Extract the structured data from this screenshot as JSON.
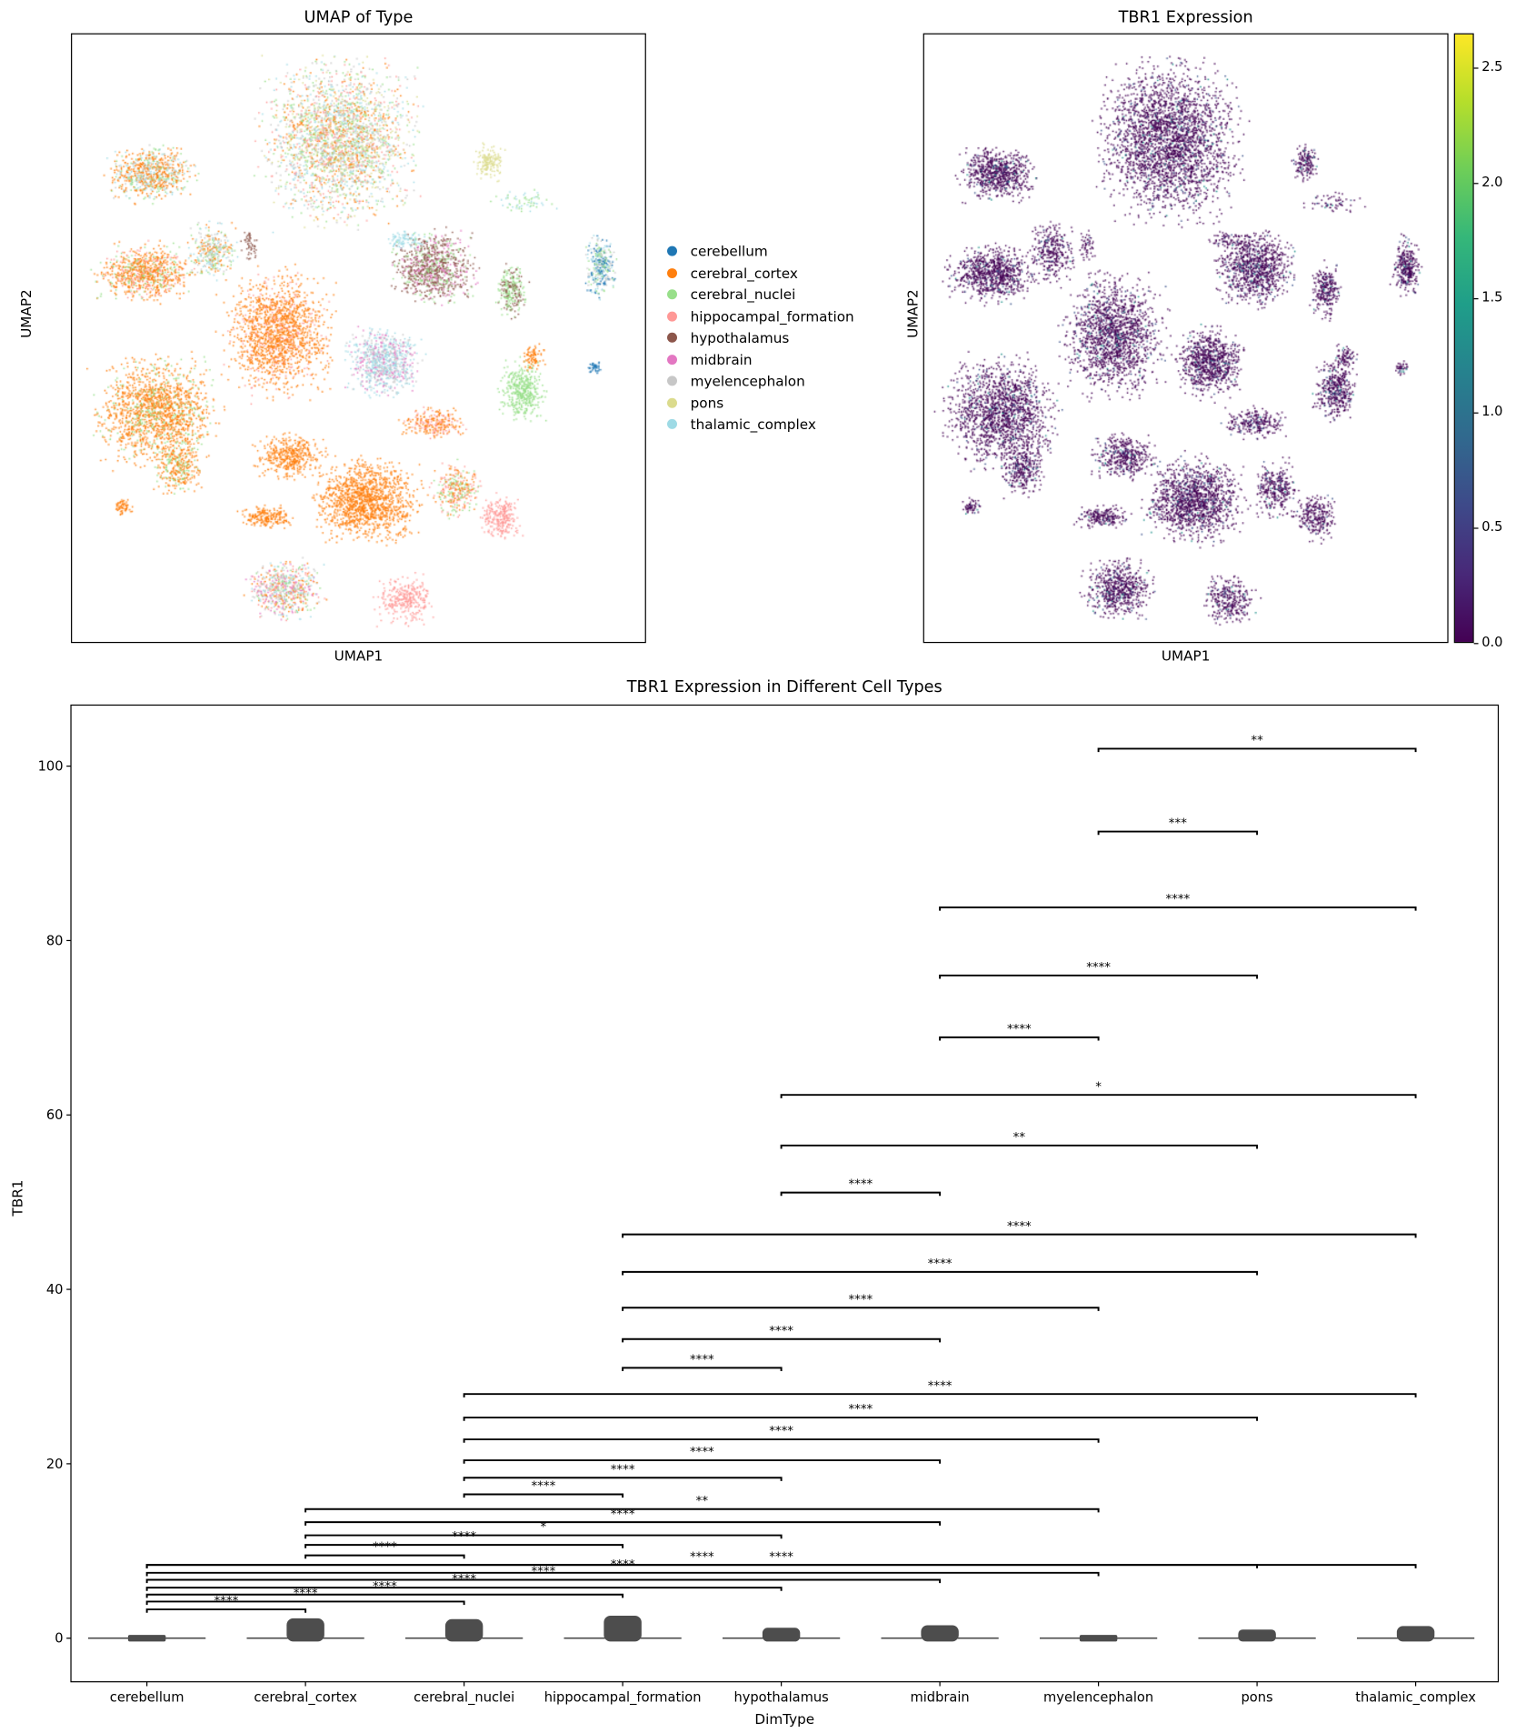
{
  "umap_type": {
    "title": "UMAP of Type",
    "xlabel": "UMAP1",
    "ylabel": "UMAP2",
    "legend": [
      {
        "label": "cerebellum",
        "color": "#1f77b4"
      },
      {
        "label": "cerebral_cortex",
        "color": "#ff7f0e"
      },
      {
        "label": "cerebral_nuclei",
        "color": "#98df8a"
      },
      {
        "label": "hippocampal_formation",
        "color": "#ff9896"
      },
      {
        "label": "hypothalamus",
        "color": "#8c564b"
      },
      {
        "label": "midbrain",
        "color": "#e377c2"
      },
      {
        "label": "myelencephalon",
        "color": "#c7c7c7"
      },
      {
        "label": "pons",
        "color": "#dbdb8d"
      },
      {
        "label": "thalamic_complex",
        "color": "#9edae5"
      }
    ]
  },
  "umap_expr": {
    "title": "TBR1 Expression",
    "xlabel": "UMAP1",
    "ylabel": "UMAP2",
    "colormap": "viridis",
    "colorbar_range": [
      0,
      2.65
    ],
    "colorbar_ticks": [
      "0.0",
      "0.5",
      "1.0",
      "1.5",
      "2.0",
      "2.5"
    ]
  },
  "chart_data": {
    "type": "violin",
    "title": "TBR1 Expression in Different Cell Types",
    "xlabel": "DimType",
    "ylabel": "TBR1",
    "ylim": [
      -5,
      107
    ],
    "yticks": [
      "0",
      "20",
      "40",
      "60",
      "80",
      "100"
    ],
    "categories": [
      "cerebellum",
      "cerebral_cortex",
      "cerebral_nuclei",
      "hippocampal_formation",
      "hypothalamus",
      "midbrain",
      "myelencephalon",
      "pons",
      "thalamic_complex"
    ],
    "max_values": [
      0.1,
      2.3,
      2.2,
      2.6,
      1.2,
      1.5,
      0.1,
      1.0,
      1.4
    ],
    "violin_color": "#4d4d4d",
    "comparisons": [
      {
        "a": 0,
        "b": 1,
        "y": 3.3,
        "label": "****"
      },
      {
        "a": 0,
        "b": 2,
        "y": 4.2,
        "label": "****"
      },
      {
        "a": 0,
        "b": 3,
        "y": 5.0,
        "label": "****"
      },
      {
        "a": 0,
        "b": 4,
        "y": 5.8,
        "label": "****"
      },
      {
        "a": 0,
        "b": 5,
        "y": 6.7,
        "label": "****"
      },
      {
        "a": 0,
        "b": 6,
        "y": 7.5,
        "label": "****"
      },
      {
        "a": 0,
        "b": 7,
        "y": 8.4,
        "label": "****"
      },
      {
        "a": 1,
        "b": 2,
        "y": 9.5,
        "label": "****"
      },
      {
        "a": 1,
        "b": 3,
        "y": 10.7,
        "label": "****"
      },
      {
        "a": 1,
        "b": 4,
        "y": 11.8,
        "label": "*"
      },
      {
        "a": 1,
        "b": 5,
        "y": 13.3,
        "label": "****"
      },
      {
        "a": 1,
        "b": 6,
        "y": 14.8,
        "label": "**"
      },
      {
        "a": 2,
        "b": 3,
        "y": 16.5,
        "label": "****"
      },
      {
        "a": 2,
        "b": 4,
        "y": 18.4,
        "label": "****"
      },
      {
        "a": 2,
        "b": 5,
        "y": 20.4,
        "label": "****"
      },
      {
        "a": 2,
        "b": 6,
        "y": 22.8,
        "label": "****"
      },
      {
        "a": 2,
        "b": 7,
        "y": 25.3,
        "label": "****"
      },
      {
        "a": 2,
        "b": 8,
        "y": 28.0,
        "label": "****"
      },
      {
        "a": 3,
        "b": 4,
        "y": 31.0,
        "label": "****"
      },
      {
        "a": 3,
        "b": 5,
        "y": 34.3,
        "label": "****"
      },
      {
        "a": 3,
        "b": 6,
        "y": 37.9,
        "label": "****"
      },
      {
        "a": 3,
        "b": 7,
        "y": 42.0,
        "label": "****"
      },
      {
        "a": 3,
        "b": 8,
        "y": 46.3,
        "label": "****"
      },
      {
        "a": 4,
        "b": 5,
        "y": 51.1,
        "label": "****"
      },
      {
        "a": 4,
        "b": 7,
        "y": 56.5,
        "label": "**"
      },
      {
        "a": 4,
        "b": 8,
        "y": 62.3,
        "label": "*"
      },
      {
        "a": 5,
        "b": 6,
        "y": 68.9,
        "label": "****"
      },
      {
        "a": 5,
        "b": 7,
        "y": 76.0,
        "label": "****"
      },
      {
        "a": 5,
        "b": 8,
        "y": 83.8,
        "label": "****"
      },
      {
        "a": 6,
        "b": 7,
        "y": 92.5,
        "label": "***"
      },
      {
        "a": 6,
        "b": 8,
        "y": 102.0,
        "label": "**"
      },
      {
        "a": 0,
        "b": 8,
        "y": 8.4,
        "label": "****"
      }
    ]
  }
}
